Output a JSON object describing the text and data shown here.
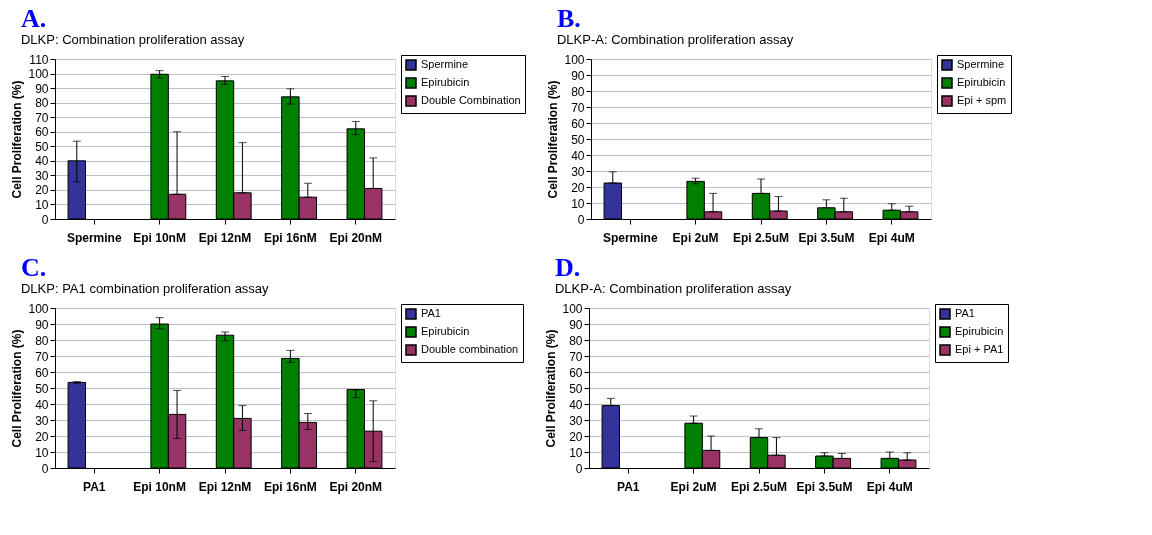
{
  "chart_data": [
    {
      "type": "bar",
      "title": "A.",
      "subtitle": "DLKP: Combination proliferation assay",
      "ylabel": "Cell Proliferation (%)",
      "categories": [
        "Spermine",
        "Epi 10nM",
        "Epi 12nM",
        "Epi 16nM",
        "Epi 20nM"
      ],
      "ylim": [
        0,
        110
      ],
      "yticks": [
        0,
        10,
        20,
        30,
        40,
        50,
        60,
        70,
        80,
        90,
        100,
        110
      ],
      "grid": "y",
      "legend": "top right",
      "series": [
        {
          "name": "Spermine",
          "color": "#333399",
          "values": [
            40,
            null,
            null,
            null,
            null
          ],
          "errors": [
            [
              25.5,
              53.5
            ],
            null,
            null,
            null,
            null
          ]
        },
        {
          "name": "Epirubicin",
          "color": "#008000",
          "values": [
            null,
            99.5,
            95,
            84,
            62
          ],
          "errors": [
            null,
            [
              97,
              102
            ],
            [
              92.5,
              98
            ],
            [
              79,
              89.5
            ],
            [
              58,
              67
            ]
          ]
        },
        {
          "name": "Double Combination",
          "color": "#993366",
          "values": [
            null,
            17,
            18,
            15,
            21
          ],
          "errors": [
            null,
            [
              17,
              60
            ],
            [
              18,
              52.5
            ],
            [
              15,
              24.5
            ],
            [
              21,
              42
            ]
          ]
        }
      ]
    },
    {
      "type": "bar",
      "title": "B.",
      "subtitle": "DLKP-A: Combination proliferation assay",
      "ylabel": "Cell Proliferation (%)",
      "categories": [
        "Spermine",
        "Epi 2uM",
        "Epi 2.5uM",
        "Epi 3.5uM",
        "Epi 4uM"
      ],
      "ylim": [
        0,
        100
      ],
      "yticks": [
        0,
        10,
        20,
        30,
        40,
        50,
        60,
        70,
        80,
        90,
        100
      ],
      "grid": "y",
      "legend": "top right",
      "series": [
        {
          "name": "Spermine",
          "color": "#333399",
          "values": [
            22.5,
            null,
            null,
            null,
            null
          ],
          "errors": [
            [
              22.5,
              29.5
            ],
            null,
            null,
            null,
            null
          ]
        },
        {
          "name": "Epirubicin",
          "color": "#008000",
          "values": [
            null,
            23.5,
            16,
            7,
            5.5
          ],
          "errors": [
            null,
            [
              22,
              25.5
            ],
            [
              16,
              25
            ],
            [
              7,
              12
            ],
            [
              5.5,
              9.5
            ]
          ]
        },
        {
          "name": "Epi + spm",
          "color": "#993366",
          "values": [
            null,
            4.5,
            5,
            4.5,
            4.5
          ],
          "errors": [
            null,
            [
              4.5,
              16
            ],
            [
              5,
              14
            ],
            [
              4.5,
              13
            ],
            [
              4.5,
              8
            ]
          ]
        }
      ]
    },
    {
      "type": "bar",
      "title": "C.",
      "subtitle": "DLKP: PA1 combination proliferation assay",
      "ylabel": "Cell Proliferation (%)",
      "categories": [
        "PA1",
        "Epi 10nM",
        "Epi 12nM",
        "Epi 16nM",
        "Epi 20nM"
      ],
      "ylim": [
        0,
        100
      ],
      "yticks": [
        0,
        10,
        20,
        30,
        40,
        50,
        60,
        70,
        80,
        90,
        100
      ],
      "grid": "y",
      "legend": "top right",
      "series": [
        {
          "name": "PA1",
          "color": "#333399",
          "values": [
            53.5,
            null,
            null,
            null,
            null
          ],
          "errors": [
            [
              53,
              54
            ],
            null,
            null,
            null,
            null
          ]
        },
        {
          "name": "Epirubicin",
          "color": "#008000",
          "values": [
            null,
            90,
            83,
            68.5,
            49
          ],
          "errors": [
            null,
            [
              87,
              94
            ],
            [
              79.5,
              85
            ],
            [
              66,
              73.5
            ],
            [
              44,
              49
            ]
          ]
        },
        {
          "name": "Double combination",
          "color": "#993366",
          "values": [
            null,
            33.5,
            31,
            28.5,
            23
          ],
          "errors": [
            null,
            [
              18.5,
              48.5
            ],
            [
              23.5,
              39
            ],
            [
              24,
              34
            ],
            [
              4,
              42
            ]
          ]
        }
      ]
    },
    {
      "type": "bar",
      "title": "D.",
      "subtitle": "DLKP-A: Combination proliferation assay",
      "ylabel": "Cell Proliferation (%)",
      "categories": [
        "PA1",
        "Epi 2uM",
        "Epi 2.5uM",
        "Epi 3.5uM",
        "Epi 4uM"
      ],
      "ylim": [
        0,
        100
      ],
      "yticks": [
        0,
        10,
        20,
        30,
        40,
        50,
        60,
        70,
        80,
        90,
        100
      ],
      "grid": "y",
      "legend": "top right",
      "series": [
        {
          "name": "PA1",
          "color": "#333399",
          "values": [
            39,
            null,
            null,
            null,
            null
          ],
          "errors": [
            [
              39,
              43.5
            ],
            null,
            null,
            null,
            null
          ]
        },
        {
          "name": "Epirubicin",
          "color": "#008000",
          "values": [
            null,
            28,
            19,
            7.5,
            6
          ],
          "errors": [
            null,
            [
              28,
              32.5
            ],
            [
              19,
              24.5
            ],
            [
              7.5,
              9.5
            ],
            [
              6,
              10
            ]
          ]
        },
        {
          "name": "Epi + PA1",
          "color": "#993366",
          "values": [
            null,
            11,
            8,
            6,
            5
          ],
          "errors": [
            null,
            [
              11,
              20
            ],
            [
              8,
              19
            ],
            [
              6,
              9
            ],
            [
              5,
              9.5
            ]
          ]
        }
      ]
    }
  ]
}
